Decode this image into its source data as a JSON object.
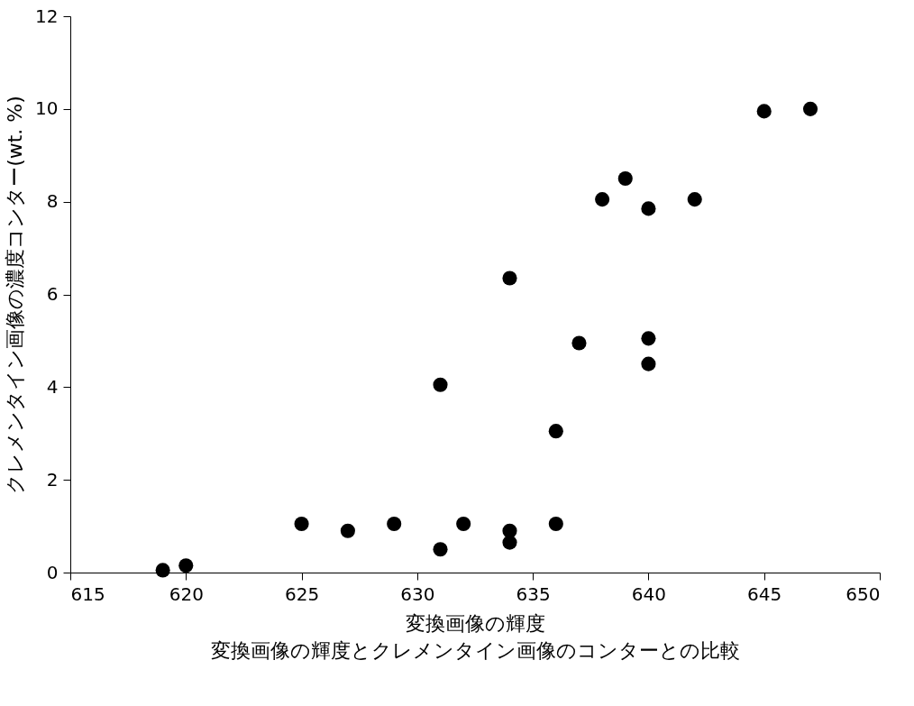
{
  "chart_data": {
    "type": "scatter",
    "title": "変換画像の輝度とクレメンタイン画像のコンターとの比較",
    "xlabel": "変換画像の輝度",
    "ylabel": "クレメンタイン画像の濃度コンター(wt. %)",
    "x": [
      619,
      620,
      625,
      627,
      629,
      631,
      631,
      632,
      634,
      634,
      634,
      636,
      636,
      637,
      638,
      639,
      640,
      640,
      640,
      642,
      645,
      647
    ],
    "series": [
      {
        "color": "#000000",
        "values": [
          0.05,
          0.15,
          1.05,
          0.9,
          1.05,
          0.5,
          4.05,
          1.05,
          0.9,
          0.65,
          6.35,
          1.05,
          3.05,
          4.95,
          8.05,
          8.5,
          7.85,
          5.05,
          4.5,
          8.05,
          9.95,
          10.0
        ]
      }
    ],
    "xlim": [
      615,
      650
    ],
    "xticks": [
      615,
      620,
      625,
      630,
      635,
      640,
      645,
      650
    ],
    "ylim": [
      0,
      12
    ],
    "yticks": [
      0,
      2,
      4,
      6,
      8,
      10,
      12
    ],
    "grid": false,
    "legend": false,
    "marker": "circle"
  }
}
